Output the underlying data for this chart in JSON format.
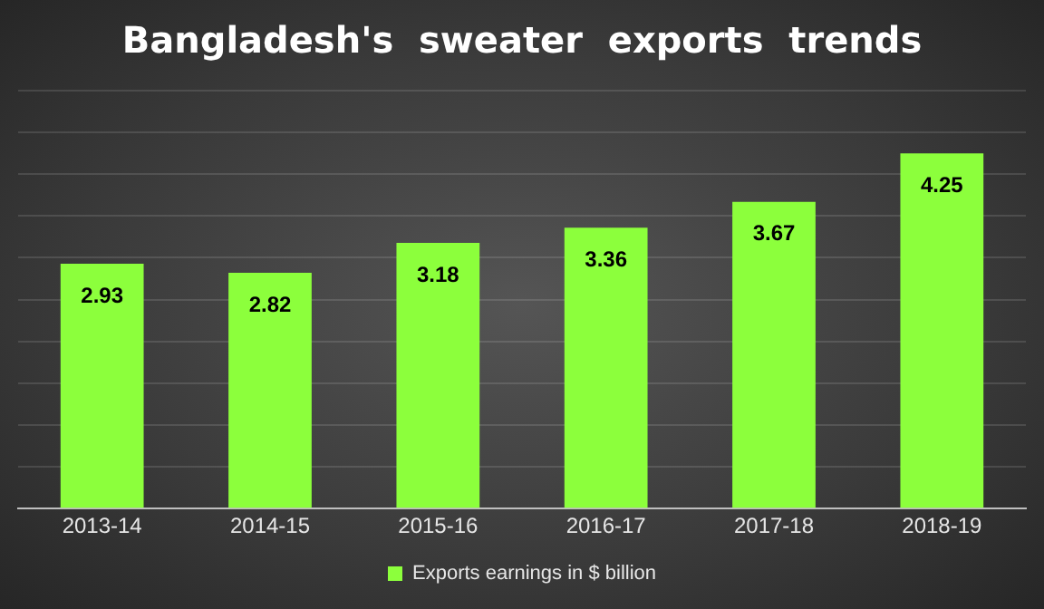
{
  "chart_data": {
    "type": "bar",
    "title": "Bangladesh's  sweater  exports  trends",
    "categories": [
      "2013-14",
      "2014-15",
      "2015-16",
      "2016-17",
      "2017-18",
      "2018-19"
    ],
    "series": [
      {
        "name": "Exports earnings in $ billion",
        "color": "#8cff3c",
        "values": [
          2.93,
          2.82,
          3.18,
          3.36,
          3.67,
          4.25
        ]
      }
    ],
    "ylim": [
      0,
      5
    ],
    "yticks": [
      {
        "value": 0,
        "label": null
      },
      {
        "value": 0.5,
        "label": null
      },
      {
        "value": 1,
        "label": null
      },
      {
        "value": 1.5,
        "label": null
      },
      {
        "value": 2,
        "label": null
      },
      {
        "value": 2.5,
        "label": null
      },
      {
        "value": 3,
        "label": null
      },
      {
        "value": 3.5,
        "label": null
      },
      {
        "value": 4,
        "label": null
      },
      {
        "value": 4.5,
        "label": null
      },
      {
        "value": 5,
        "label": null
      }
    ],
    "grid": "y",
    "legend": "bottom",
    "tick_labels": "x",
    "data_labels": true
  }
}
